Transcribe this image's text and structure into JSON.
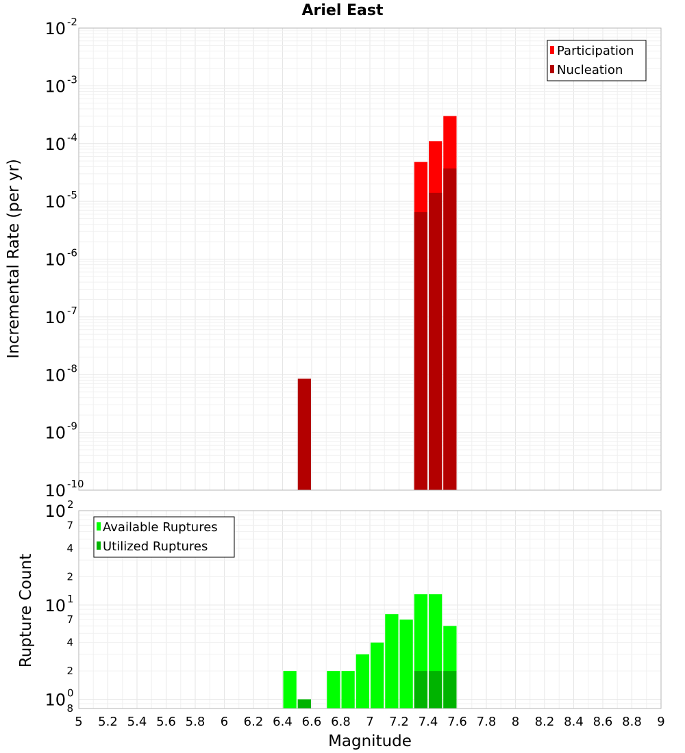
{
  "chart_data": [
    {
      "type": "bar",
      "title": "Ariel East",
      "ylabel": "Incremental Rate (per yr)",
      "xlabel": "",
      "xlim": [
        5,
        9
      ],
      "ylim": [
        1e-10,
        0.01
      ],
      "yscale": "log",
      "grid": true,
      "legend_position": "top-right",
      "y_ticks": [
        {
          "base": "10",
          "exp": "-2"
        },
        {
          "base": "10",
          "exp": "-3"
        },
        {
          "base": "10",
          "exp": "-4"
        },
        {
          "base": "10",
          "exp": "-5"
        },
        {
          "base": "10",
          "exp": "-6"
        },
        {
          "base": "10",
          "exp": "-7"
        },
        {
          "base": "10",
          "exp": "-8"
        },
        {
          "base": "10",
          "exp": "-9"
        },
        {
          "base": "10",
          "exp": "-10"
        }
      ],
      "series": [
        {
          "name": "Participation",
          "color": "#ff0000",
          "x": [
            7.35,
            7.45,
            7.55
          ],
          "values": [
            4.8e-05,
            0.00011,
            0.0003
          ]
        },
        {
          "name": "Nucleation",
          "color": "#b30000",
          "x": [
            6.55,
            7.35,
            7.45,
            7.55
          ],
          "values": [
            8.5e-09,
            6.5e-06,
            1.4e-05,
            3.7e-05
          ]
        }
      ]
    },
    {
      "type": "bar",
      "title": "",
      "ylabel": "Rupture Count",
      "xlabel": "Magnitude",
      "xlim": [
        5,
        9
      ],
      "ylim": [
        0.8,
        100
      ],
      "yscale": "log",
      "grid": true,
      "legend_position": "top-left",
      "x_ticks": [
        "5",
        "5.2",
        "5.4",
        "5.6",
        "5.8",
        "6",
        "6.2",
        "6.4",
        "6.6",
        "6.8",
        "7",
        "7.2",
        "7.4",
        "7.6",
        "7.8",
        "8",
        "8.2",
        "8.4",
        "8.6",
        "8.8",
        "9"
      ],
      "y_major_ticks": [
        {
          "base": "10",
          "exp": "2"
        },
        {
          "base": "10",
          "exp": "1"
        },
        {
          "base": "10",
          "exp": "0"
        }
      ],
      "y_minor_ticks": [
        {
          "value": 70,
          "label": "7"
        },
        {
          "value": 40,
          "label": "4"
        },
        {
          "value": 20,
          "label": "2"
        },
        {
          "value": 7,
          "label": "7"
        },
        {
          "value": 4,
          "label": "4"
        },
        {
          "value": 2,
          "label": "2"
        },
        {
          "value": 0.8,
          "label": "8"
        }
      ],
      "series": [
        {
          "name": "Available Ruptures",
          "color": "#00ff00",
          "x": [
            6.45,
            6.55,
            6.75,
            6.85,
            6.95,
            7.05,
            7.15,
            7.25,
            7.35,
            7.45,
            7.55
          ],
          "values": [
            2,
            1,
            2,
            2,
            3,
            4,
            8,
            7,
            13,
            13,
            6
          ]
        },
        {
          "name": "Utilized Ruptures",
          "color": "#00b300",
          "x": [
            6.55,
            7.35,
            7.45,
            7.55
          ],
          "values": [
            1,
            2,
            2,
            2
          ]
        }
      ]
    }
  ]
}
